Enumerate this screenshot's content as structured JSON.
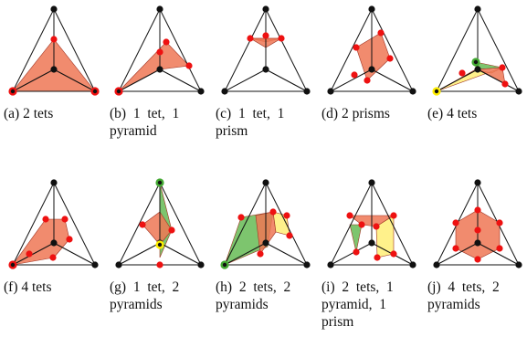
{
  "figure": {
    "colors": {
      "edge": "#111111",
      "vertex": "#111111",
      "intersection": "#ee1111",
      "fill_primary": "#ee7755",
      "fill_green": "#66bb55",
      "fill_yellow": "#ffee77",
      "ring_green": "#44aa33",
      "ring_yellow": "#ffee00"
    },
    "panels": [
      {
        "id": "a",
        "caption_lines": [
          "(a) 2 tets"
        ]
      },
      {
        "id": "b",
        "caption_lines": [
          "(b)  1  tet,  1",
          "pyramid"
        ]
      },
      {
        "id": "c",
        "caption_lines": [
          "(c)  1  tet,  1",
          "prism"
        ]
      },
      {
        "id": "d",
        "caption_lines": [
          "(d) 2 prisms"
        ]
      },
      {
        "id": "e",
        "caption_lines": [
          "(e) 4 tets"
        ]
      },
      {
        "id": "f",
        "caption_lines": [
          "(f) 4 tets"
        ]
      },
      {
        "id": "g",
        "caption_lines": [
          "(g)  1  tet,  2",
          "pyramids"
        ]
      },
      {
        "id": "h",
        "caption_lines": [
          "(h)  2  tets,  2",
          "pyramids"
        ]
      },
      {
        "id": "i",
        "caption_lines": [
          "(i)  2  tets,  1",
          "pyramid,  1",
          "prism"
        ]
      },
      {
        "id": "j",
        "caption_lines": [
          "(j)  4  tets,  2",
          "pyramids"
        ]
      }
    ]
  }
}
